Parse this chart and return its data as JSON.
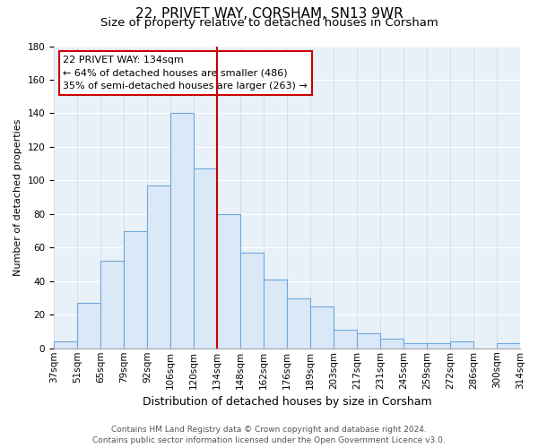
{
  "title": "22, PRIVET WAY, CORSHAM, SN13 9WR",
  "subtitle": "Size of property relative to detached houses in Corsham",
  "xlabel": "Distribution of detached houses by size in Corsham",
  "ylabel": "Number of detached properties",
  "bar_labels": [
    "37sqm",
    "51sqm",
    "65sqm",
    "79sqm",
    "92sqm",
    "106sqm",
    "120sqm",
    "134sqm",
    "148sqm",
    "162sqm",
    "176sqm",
    "189sqm",
    "203sqm",
    "217sqm",
    "231sqm",
    "245sqm",
    "259sqm",
    "272sqm",
    "286sqm",
    "300sqm",
    "314sqm"
  ],
  "bar_values": [
    4,
    27,
    52,
    70,
    97,
    140,
    107,
    80,
    57,
    41,
    30,
    25,
    11,
    9,
    6,
    3,
    3,
    4,
    0,
    3
  ],
  "bar_color": "#dae8f7",
  "bar_edge_color": "#6fa8dc",
  "vline_color": "#cc0000",
  "ylim": [
    0,
    180
  ],
  "yticks": [
    0,
    20,
    40,
    60,
    80,
    100,
    120,
    140,
    160,
    180
  ],
  "annotation_title": "22 PRIVET WAY: 134sqm",
  "annotation_line1": "← 64% of detached houses are smaller (486)",
  "annotation_line2": "35% of semi-detached houses are larger (263) →",
  "annotation_box_edge": "#cc0000",
  "footer_line1": "Contains HM Land Registry data © Crown copyright and database right 2024.",
  "footer_line2": "Contains public sector information licensed under the Open Government Licence v3.0.",
  "fig_background": "#ffffff",
  "plot_background": "#e8f0f8",
  "grid_color": "#c8d8e8",
  "title_fontsize": 11,
  "subtitle_fontsize": 9.5,
  "xlabel_fontsize": 9,
  "ylabel_fontsize": 8,
  "tick_fontsize": 7.5,
  "annotation_fontsize": 8,
  "footer_fontsize": 6.5
}
